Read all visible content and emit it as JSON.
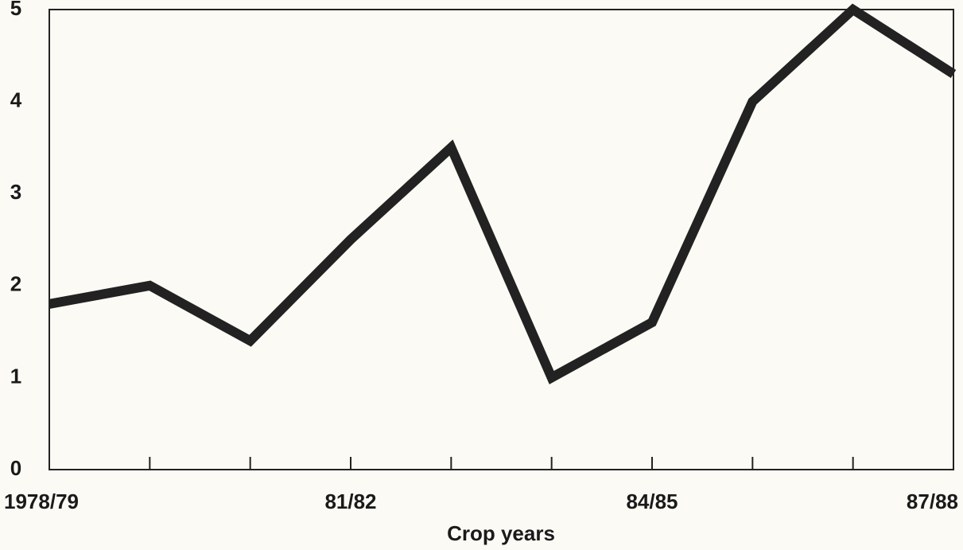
{
  "chart_data": {
    "type": "line",
    "x_label": "Crop years",
    "categories": [
      "1978/79",
      null,
      null,
      "81/82",
      null,
      null,
      "84/85",
      null,
      null,
      "87/88"
    ],
    "values": [
      1.8,
      2.0,
      1.4,
      2.5,
      3.5,
      1.0,
      1.6,
      4.0,
      5.0,
      4.3
    ],
    "color": "#222222",
    "ylim": [
      0,
      5
    ],
    "yticks": [
      0,
      1,
      2,
      3,
      4,
      5
    ],
    "grid": false
  }
}
